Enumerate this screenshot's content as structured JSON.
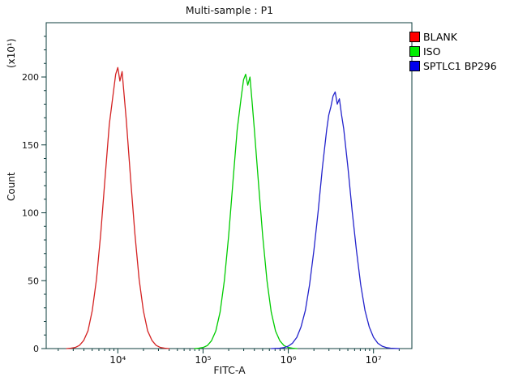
{
  "title": "Multi-sample : P1",
  "legend": {
    "items": [
      {
        "label": "BLANK",
        "color": "#ff0000"
      },
      {
        "label": "ISO",
        "color": "#00ee00"
      },
      {
        "label": "SPTLC1 BP296",
        "color": "#0000ee"
      }
    ]
  },
  "chart_data": {
    "type": "line",
    "subtype": "flow-cytometry-histogram-overlay",
    "title": "Multi-sample : P1",
    "xlabel": "FITC-A",
    "ylabel": "Count",
    "ylabel_multiplier": "(x10¹)",
    "x_scale": "log10",
    "xlim_log10": [
      3.16,
      7.45
    ],
    "ylim": [
      0,
      240
    ],
    "x_major_ticks": [
      4,
      5,
      6,
      7
    ],
    "x_major_tick_labels": [
      "10⁴",
      "10⁵",
      "10⁶",
      "10⁷"
    ],
    "y_major_ticks": [
      0,
      50,
      100,
      150,
      200
    ],
    "y_minor_step": 10,
    "grid": false,
    "legend_position": "outside-right-top",
    "axis_color": "#0c3c3c",
    "text_color": "#111111",
    "series": [
      {
        "name": "BLANK",
        "color": "#d42222",
        "peak_x": 10000,
        "peak_count": 207,
        "points": [
          [
            3.4,
            0
          ],
          [
            3.45,
            0.3
          ],
          [
            3.5,
            0.8
          ],
          [
            3.55,
            2.3
          ],
          [
            3.6,
            6
          ],
          [
            3.65,
            13
          ],
          [
            3.7,
            28
          ],
          [
            3.75,
            51
          ],
          [
            3.8,
            85
          ],
          [
            3.85,
            125
          ],
          [
            3.9,
            165
          ],
          [
            3.95,
            190
          ],
          [
            3.975,
            202
          ],
          [
            4.0,
            207
          ],
          [
            4.025,
            197
          ],
          [
            4.05,
            204
          ],
          [
            4.075,
            186
          ],
          [
            4.1,
            168
          ],
          [
            4.15,
            125
          ],
          [
            4.2,
            85
          ],
          [
            4.25,
            51
          ],
          [
            4.3,
            28
          ],
          [
            4.35,
            13
          ],
          [
            4.4,
            6
          ],
          [
            4.45,
            2.3
          ],
          [
            4.5,
            0.8
          ],
          [
            4.55,
            0.3
          ],
          [
            4.6,
            0
          ]
        ]
      },
      {
        "name": "ISO",
        "color": "#00cc00",
        "peak_x": 320000,
        "peak_count": 202,
        "points": [
          [
            4.9,
            0
          ],
          [
            4.95,
            0.3
          ],
          [
            5.0,
            0.8
          ],
          [
            5.05,
            2.2
          ],
          [
            5.1,
            5.8
          ],
          [
            5.15,
            13
          ],
          [
            5.2,
            27
          ],
          [
            5.25,
            50
          ],
          [
            5.3,
            83
          ],
          [
            5.35,
            122
          ],
          [
            5.4,
            161
          ],
          [
            5.45,
            186
          ],
          [
            5.475,
            198
          ],
          [
            5.5,
            202
          ],
          [
            5.525,
            194
          ],
          [
            5.55,
            200
          ],
          [
            5.575,
            182
          ],
          [
            5.6,
            163
          ],
          [
            5.65,
            122
          ],
          [
            5.7,
            83
          ],
          [
            5.75,
            50
          ],
          [
            5.8,
            27
          ],
          [
            5.85,
            13
          ],
          [
            5.9,
            5.8
          ],
          [
            5.95,
            2.2
          ],
          [
            6.0,
            0.8
          ],
          [
            6.05,
            0.3
          ],
          [
            6.1,
            0
          ]
        ]
      },
      {
        "name": "SPTLC1 BP296",
        "color": "#2424cc",
        "peak_x": 3500000,
        "peak_count": 189,
        "points": [
          [
            5.8,
            0
          ],
          [
            5.85,
            0.1
          ],
          [
            5.9,
            0.3
          ],
          [
            5.95,
            0.7
          ],
          [
            6.0,
            1.8
          ],
          [
            6.05,
            4
          ],
          [
            6.1,
            8.3
          ],
          [
            6.15,
            16
          ],
          [
            6.2,
            28
          ],
          [
            6.25,
            47
          ],
          [
            6.3,
            72
          ],
          [
            6.35,
            101
          ],
          [
            6.4,
            133
          ],
          [
            6.45,
            161
          ],
          [
            6.475,
            172
          ],
          [
            6.5,
            178
          ],
          [
            6.525,
            186
          ],
          [
            6.55,
            189
          ],
          [
            6.575,
            180
          ],
          [
            6.6,
            184
          ],
          [
            6.625,
            172
          ],
          [
            6.65,
            162
          ],
          [
            6.7,
            133
          ],
          [
            6.75,
            101
          ],
          [
            6.8,
            72
          ],
          [
            6.85,
            47
          ],
          [
            6.9,
            28
          ],
          [
            6.95,
            16
          ],
          [
            7.0,
            8.3
          ],
          [
            7.05,
            4
          ],
          [
            7.1,
            1.8
          ],
          [
            7.15,
            0.7
          ],
          [
            7.2,
            0.3
          ],
          [
            7.25,
            0.1
          ],
          [
            7.3,
            0
          ]
        ]
      }
    ]
  }
}
